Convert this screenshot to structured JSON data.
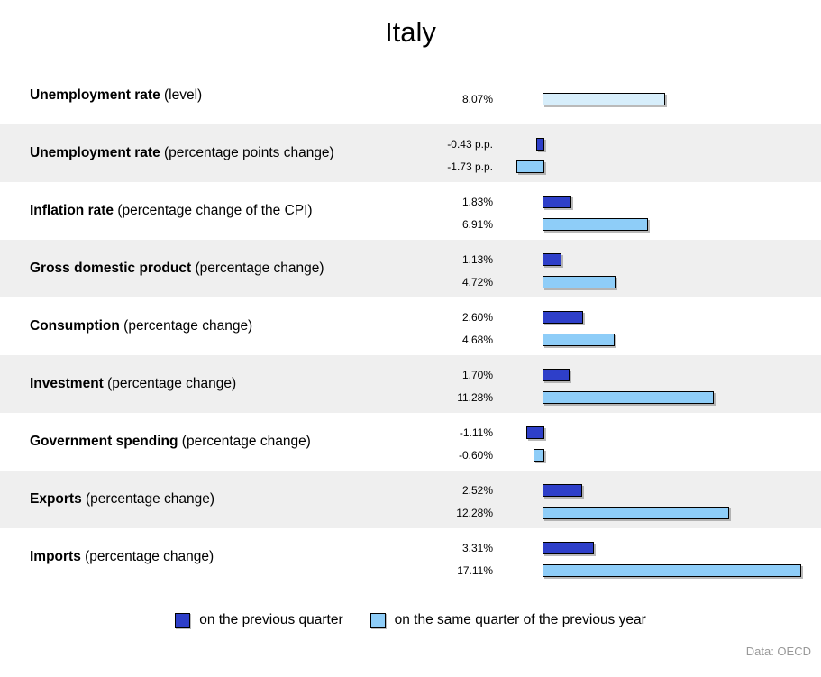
{
  "title": "Italy",
  "source": "Data: OECD",
  "chart_data": {
    "type": "bar",
    "orientation": "horizontal",
    "title": "Italy",
    "legend_position": "bottom-center",
    "grid": false,
    "colors": {
      "previous_quarter": "#2e3fc9",
      "previous_year": "#8ecdf8",
      "level": "#d7eefb"
    },
    "rows": [
      {
        "label_bold": "Unemployment rate",
        "label_rest": " (level)",
        "bars": [
          {
            "series": "level",
            "value": 8.07,
            "label": "8.07%"
          }
        ]
      },
      {
        "label_bold": "Unemployment rate",
        "label_rest": " (percentage points change)",
        "bars": [
          {
            "series": "previous_quarter",
            "value": -0.43,
            "label": "-0.43 p.p."
          },
          {
            "series": "previous_year",
            "value": -1.73,
            "label": "-1.73 p.p."
          }
        ]
      },
      {
        "label_bold": "Inflation rate",
        "label_rest": " (percentage change of the CPI)",
        "bars": [
          {
            "series": "previous_quarter",
            "value": 1.83,
            "label": "1.83%"
          },
          {
            "series": "previous_year",
            "value": 6.91,
            "label": "6.91%"
          }
        ]
      },
      {
        "label_bold": "Gross domestic product",
        "label_rest": " (percentage change)",
        "bars": [
          {
            "series": "previous_quarter",
            "value": 1.13,
            "label": "1.13%"
          },
          {
            "series": "previous_year",
            "value": 4.72,
            "label": "4.72%"
          }
        ]
      },
      {
        "label_bold": "Consumption",
        "label_rest": " (percentage change)",
        "bars": [
          {
            "series": "previous_quarter",
            "value": 2.6,
            "label": "2.60%"
          },
          {
            "series": "previous_year",
            "value": 4.68,
            "label": "4.68%"
          }
        ]
      },
      {
        "label_bold": "Investment",
        "label_rest": " (percentage change)",
        "bars": [
          {
            "series": "previous_quarter",
            "value": 1.7,
            "label": "1.70%"
          },
          {
            "series": "previous_year",
            "value": 11.28,
            "label": "11.28%"
          }
        ]
      },
      {
        "label_bold": "Government spending",
        "label_rest": " (percentage change)",
        "bars": [
          {
            "series": "previous_quarter",
            "value": -1.11,
            "label": "-1.11%"
          },
          {
            "series": "previous_year",
            "value": -0.6,
            "label": "-0.60%"
          }
        ]
      },
      {
        "label_bold": "Exports",
        "label_rest": " (percentage change)",
        "bars": [
          {
            "series": "previous_quarter",
            "value": 2.52,
            "label": "2.52%"
          },
          {
            "series": "previous_year",
            "value": 12.28,
            "label": "12.28%"
          }
        ]
      },
      {
        "label_bold": "Imports",
        "label_rest": " (percentage change)",
        "bars": [
          {
            "series": "previous_quarter",
            "value": 3.31,
            "label": "3.31%"
          },
          {
            "series": "previous_year",
            "value": 17.11,
            "label": "17.11%"
          }
        ]
      }
    ],
    "legend": [
      {
        "series": "previous_quarter",
        "label": "on the previous quarter",
        "color": "#2e3fc9"
      },
      {
        "series": "previous_year",
        "label": "on the same quarter of the previous year",
        "color": "#8ecdf8"
      }
    ]
  }
}
